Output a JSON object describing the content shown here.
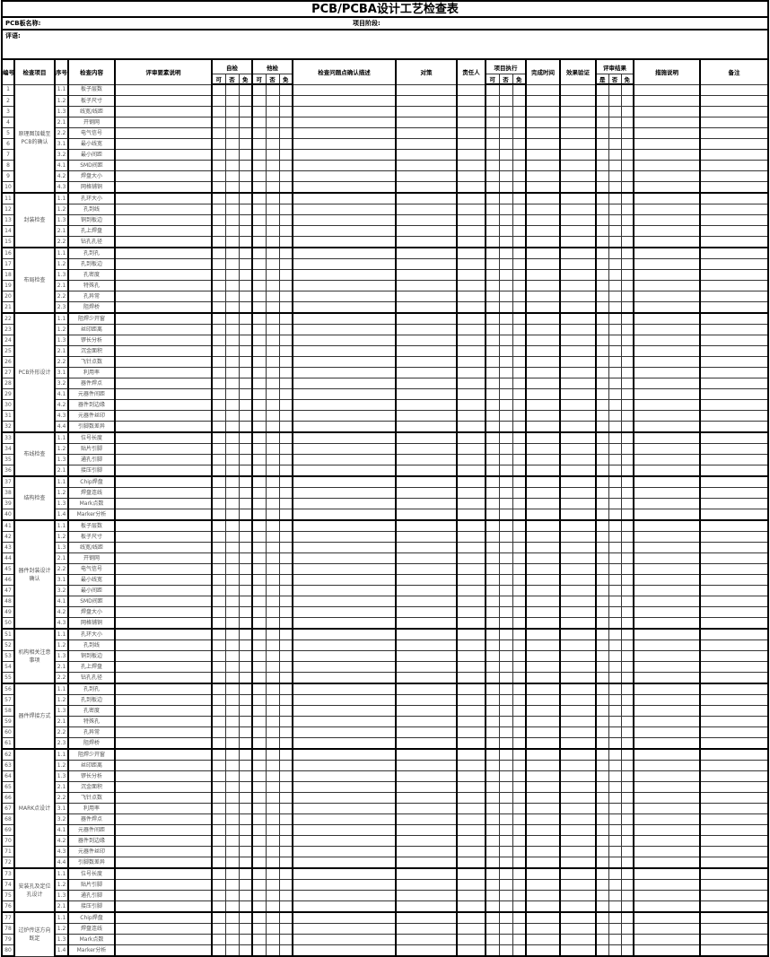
{
  "title": "PCB/PCBA设计工艺检查表",
  "meta": {
    "board_name_label": "PCB板名称:",
    "project_stage_label": "项目阶段:",
    "comment_label": "评语:"
  },
  "headers": {
    "no": "编号",
    "item": "检查项目",
    "seq": "序号",
    "content": "检查内容",
    "criteria": "评审要素说明",
    "self_check": "自检",
    "other_check": "他检",
    "problem": "检查问题点确认描述",
    "measure": "对策",
    "owner": "责任人",
    "execution": "项目执行",
    "finish_time": "完成时间",
    "verify": "效果验证",
    "result": "评审结果",
    "action": "措施说明",
    "remark": "备注",
    "sub_ynx": [
      "可",
      "否",
      "免"
    ],
    "sub_result": [
      "是",
      "否",
      "免"
    ]
  },
  "groups": [
    {
      "name": "原理图加载至PCB的确认",
      "items": [
        {
          "no": "1",
          "seq": "1.1",
          "content": "板子层数"
        },
        {
          "no": "2",
          "seq": "1.2",
          "content": "板子尺寸"
        },
        {
          "no": "3",
          "seq": "1.3",
          "content": "线宽/线距"
        },
        {
          "no": "4",
          "seq": "2.1",
          "content": "开钢网"
        },
        {
          "no": "5",
          "seq": "2.2",
          "content": "电气信号"
        },
        {
          "no": "6",
          "seq": "3.1",
          "content": "最小线宽"
        },
        {
          "no": "7",
          "seq": "3.2",
          "content": "最小间距"
        },
        {
          "no": "8",
          "seq": "4.1",
          "content": "SMD间距"
        },
        {
          "no": "9",
          "seq": "4.2",
          "content": "焊盘大小"
        },
        {
          "no": "10",
          "seq": "4.3",
          "content": "网格铺铜"
        }
      ]
    },
    {
      "name": "封装检查",
      "items": [
        {
          "no": "11",
          "seq": "1.1",
          "content": "孔环大小"
        },
        {
          "no": "12",
          "seq": "1.2",
          "content": "孔到线"
        },
        {
          "no": "13",
          "seq": "1.3",
          "content": "铜到板边"
        },
        {
          "no": "14",
          "seq": "2.1",
          "content": "孔上焊盘"
        },
        {
          "no": "15",
          "seq": "2.2",
          "content": "钻孔孔径"
        }
      ]
    },
    {
      "name": "布局检查",
      "items": [
        {
          "no": "16",
          "seq": "1.1",
          "content": "孔到孔"
        },
        {
          "no": "17",
          "seq": "1.2",
          "content": "孔到板边"
        },
        {
          "no": "18",
          "seq": "1.3",
          "content": "孔密度"
        },
        {
          "no": "19",
          "seq": "2.1",
          "content": "特殊孔"
        },
        {
          "no": "20",
          "seq": "2.2",
          "content": "孔异常"
        },
        {
          "no": "21",
          "seq": "2.3",
          "content": "阻焊桥"
        }
      ]
    },
    {
      "name": "PCB外形设计",
      "items": [
        {
          "no": "22",
          "seq": "1.1",
          "content": "阻焊少开窗"
        },
        {
          "no": "23",
          "seq": "1.2",
          "content": "丝印距离"
        },
        {
          "no": "24",
          "seq": "1.3",
          "content": "锣长分析"
        },
        {
          "no": "25",
          "seq": "2.1",
          "content": "沉金面积"
        },
        {
          "no": "26",
          "seq": "2.2",
          "content": "飞针点数"
        },
        {
          "no": "27",
          "seq": "3.1",
          "content": "利用率"
        },
        {
          "no": "28",
          "seq": "3.2",
          "content": "器件焊点"
        },
        {
          "no": "29",
          "seq": "4.1",
          "content": "元器件间距"
        },
        {
          "no": "30",
          "seq": "4.2",
          "content": "器件到边缘"
        },
        {
          "no": "31",
          "seq": "4.3",
          "content": "元器件丝印"
        },
        {
          "no": "32",
          "seq": "4.4",
          "content": "引脚数差异"
        }
      ]
    },
    {
      "name": "布线检查",
      "items": [
        {
          "no": "33",
          "seq": "1.1",
          "content": "位号长度"
        },
        {
          "no": "34",
          "seq": "1.2",
          "content": "贴片引脚"
        },
        {
          "no": "35",
          "seq": "1.3",
          "content": "通孔引脚"
        },
        {
          "no": "36",
          "seq": "2.1",
          "content": "接压引脚"
        }
      ]
    },
    {
      "name": "结构检查",
      "items": [
        {
          "no": "37",
          "seq": "1.1",
          "content": "Chip焊盘"
        },
        {
          "no": "38",
          "seq": "1.2",
          "content": "焊盘连线"
        },
        {
          "no": "39",
          "seq": "1.3",
          "content": "Mark点数"
        },
        {
          "no": "40",
          "seq": "1.4",
          "content": "Marker分析"
        }
      ]
    },
    {
      "name": "器件封装设计确认",
      "items": [
        {
          "no": "41",
          "seq": "1.1",
          "content": "板子层数"
        },
        {
          "no": "42",
          "seq": "1.2",
          "content": "板子尺寸"
        },
        {
          "no": "43",
          "seq": "1.3",
          "content": "线宽/线距"
        },
        {
          "no": "44",
          "seq": "2.1",
          "content": "开钢网"
        },
        {
          "no": "45",
          "seq": "2.2",
          "content": "电气信号"
        },
        {
          "no": "46",
          "seq": "3.1",
          "content": "最小线宽"
        },
        {
          "no": "47",
          "seq": "3.2",
          "content": "最小间距"
        },
        {
          "no": "48",
          "seq": "4.1",
          "content": "SMD间距"
        },
        {
          "no": "49",
          "seq": "4.2",
          "content": "焊盘大小"
        },
        {
          "no": "50",
          "seq": "4.3",
          "content": "网格铺铜"
        }
      ]
    },
    {
      "name": "机构相关注意事项",
      "items": [
        {
          "no": "51",
          "seq": "1.1",
          "content": "孔环大小"
        },
        {
          "no": "52",
          "seq": "1.2",
          "content": "孔到线"
        },
        {
          "no": "53",
          "seq": "1.3",
          "content": "铜到板边"
        },
        {
          "no": "54",
          "seq": "2.1",
          "content": "孔上焊盘"
        },
        {
          "no": "55",
          "seq": "2.2",
          "content": "钻孔孔径"
        }
      ]
    },
    {
      "name": "器件焊接方式",
      "items": [
        {
          "no": "56",
          "seq": "1.1",
          "content": "孔到孔"
        },
        {
          "no": "57",
          "seq": "1.2",
          "content": "孔到板边"
        },
        {
          "no": "58",
          "seq": "1.3",
          "content": "孔密度"
        },
        {
          "no": "59",
          "seq": "2.1",
          "content": "特殊孔"
        },
        {
          "no": "60",
          "seq": "2.2",
          "content": "孔异常"
        },
        {
          "no": "61",
          "seq": "2.3",
          "content": "阻焊桥"
        }
      ]
    },
    {
      "name": "MARK点设计",
      "items": [
        {
          "no": "62",
          "seq": "1.1",
          "content": "阻焊少开窗"
        },
        {
          "no": "63",
          "seq": "1.2",
          "content": "丝印距离"
        },
        {
          "no": "64",
          "seq": "1.3",
          "content": "锣长分析"
        },
        {
          "no": "65",
          "seq": "2.1",
          "content": "沉金面积"
        },
        {
          "no": "66",
          "seq": "2.2",
          "content": "飞针点数"
        },
        {
          "no": "67",
          "seq": "3.1",
          "content": "利用率"
        },
        {
          "no": "68",
          "seq": "3.2",
          "content": "器件焊点"
        },
        {
          "no": "69",
          "seq": "4.1",
          "content": "元器件间距"
        },
        {
          "no": "70",
          "seq": "4.2",
          "content": "器件到边缘"
        },
        {
          "no": "71",
          "seq": "4.3",
          "content": "元器件丝印"
        },
        {
          "no": "72",
          "seq": "4.4",
          "content": "引脚数差异"
        }
      ]
    },
    {
      "name": "安装孔及定位孔设计",
      "items": [
        {
          "no": "73",
          "seq": "1.1",
          "content": "位号长度"
        },
        {
          "no": "74",
          "seq": "1.2",
          "content": "贴片引脚"
        },
        {
          "no": "75",
          "seq": "1.3",
          "content": "通孔引脚"
        },
        {
          "no": "76",
          "seq": "2.1",
          "content": "接压引脚"
        }
      ]
    },
    {
      "name": "过炉传送方向既定",
      "items": [
        {
          "no": "77",
          "seq": "1.1",
          "content": "Chip焊盘"
        },
        {
          "no": "78",
          "seq": "1.2",
          "content": "焊盘连线"
        },
        {
          "no": "79",
          "seq": "1.3",
          "content": "Mark点数"
        },
        {
          "no": "80",
          "seq": "1.4",
          "content": "Marker分析"
        }
      ]
    }
  ]
}
